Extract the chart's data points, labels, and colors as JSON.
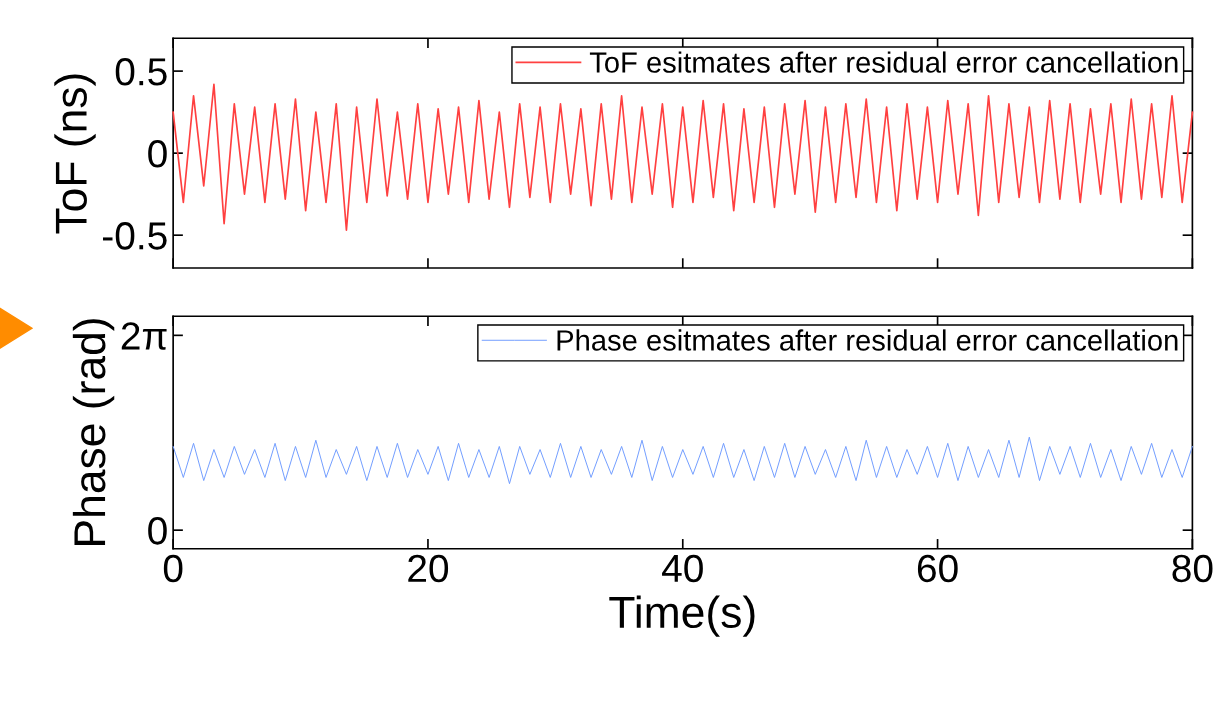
{
  "chart_data": [
    {
      "type": "line",
      "ylabel": "ToF (ns)",
      "tick_labels": "y",
      "legend": "top right",
      "xlim": [
        0,
        80
      ],
      "xticks": [
        0,
        20,
        40,
        60,
        80
      ],
      "ylim": [
        -0.7,
        0.7
      ],
      "yticks": [
        {
          "value": -0.5,
          "label": "-0.5"
        },
        0,
        0.5
      ],
      "x": [
        0,
        0.8,
        1.6,
        2.4,
        3.2,
        4,
        4.8,
        5.6,
        6.4,
        7.2,
        8,
        8.8,
        9.6,
        10.4,
        11.2,
        12,
        12.8,
        13.6,
        14.4,
        15.2,
        16,
        16.8,
        17.6,
        18.4,
        19.2,
        20,
        20.8,
        21.6,
        22.4,
        23.2,
        24,
        24.8,
        25.6,
        26.4,
        27.2,
        28,
        28.8,
        29.6,
        30.4,
        31.2,
        32,
        32.8,
        33.6,
        34.4,
        35.2,
        36,
        36.8,
        37.6,
        38.4,
        39.2,
        40,
        40.8,
        41.6,
        42.4,
        43.2,
        44,
        44.8,
        45.6,
        46.4,
        47.2,
        48,
        48.8,
        49.6,
        50.4,
        51.2,
        52,
        52.8,
        53.6,
        54.4,
        55.2,
        56,
        56.8,
        57.6,
        58.4,
        59.2,
        60,
        60.8,
        61.6,
        62.4,
        63.2,
        64,
        64.8,
        65.6,
        66.4,
        67.2,
        68,
        68.8,
        69.6,
        70.4,
        71.2,
        72,
        72.8,
        73.6,
        74.4,
        75.2,
        76,
        76.8,
        77.6,
        78.4,
        79.2,
        80
      ],
      "series": [
        {
          "name": "ToF esitmates after residual error cancellation",
          "color": "#ff4040",
          "values": [
            0.25,
            -0.3,
            0.35,
            -0.2,
            0.42,
            -0.43,
            0.3,
            -0.25,
            0.28,
            -0.3,
            0.3,
            -0.28,
            0.33,
            -0.35,
            0.25,
            -0.3,
            0.3,
            -0.47,
            0.28,
            -0.3,
            0.33,
            -0.26,
            0.25,
            -0.28,
            0.3,
            -0.3,
            0.27,
            -0.25,
            0.28,
            -0.3,
            0.32,
            -0.28,
            0.25,
            -0.33,
            0.3,
            -0.27,
            0.28,
            -0.3,
            0.3,
            -0.25,
            0.27,
            -0.32,
            0.3,
            -0.28,
            0.35,
            -0.3,
            0.28,
            -0.25,
            0.3,
            -0.33,
            0.28,
            -0.3,
            0.32,
            -0.27,
            0.3,
            -0.35,
            0.27,
            -0.3,
            0.28,
            -0.33,
            0.3,
            -0.25,
            0.32,
            -0.36,
            0.28,
            -0.3,
            0.3,
            -0.27,
            0.33,
            -0.3,
            0.28,
            -0.35,
            0.3,
            -0.28,
            0.28,
            -0.3,
            0.32,
            -0.25,
            0.3,
            -0.38,
            0.35,
            -0.3,
            0.3,
            -0.27,
            0.28,
            -0.3,
            0.32,
            -0.28,
            0.3,
            -0.3,
            0.27,
            -0.25,
            0.3,
            -0.3,
            0.33,
            -0.28,
            0.3,
            -0.27,
            0.35,
            -0.3,
            0.25
          ]
        }
      ]
    },
    {
      "type": "line",
      "ylabel": "Phase (rad)",
      "xlabel": "Time(s)",
      "legend": "top right",
      "xlim": [
        0,
        80
      ],
      "xticks": [
        0,
        20,
        40,
        60,
        80
      ],
      "ylim": [
        -0.6,
        6.9
      ],
      "yticks": [
        0,
        {
          "value": 6.283,
          "label": "2π"
        }
      ],
      "x": [
        0,
        0.8,
        1.6,
        2.4,
        3.2,
        4,
        4.8,
        5.6,
        6.4,
        7.2,
        8,
        8.8,
        9.6,
        10.4,
        11.2,
        12,
        12.8,
        13.6,
        14.4,
        15.2,
        16,
        16.8,
        17.6,
        18.4,
        19.2,
        20,
        20.8,
        21.6,
        22.4,
        23.2,
        24,
        24.8,
        25.6,
        26.4,
        27.2,
        28,
        28.8,
        29.6,
        30.4,
        31.2,
        32,
        32.8,
        33.6,
        34.4,
        35.2,
        36,
        36.8,
        37.6,
        38.4,
        39.2,
        40,
        40.8,
        41.6,
        42.4,
        43.2,
        44,
        44.8,
        45.6,
        46.4,
        47.2,
        48,
        48.8,
        49.6,
        50.4,
        51.2,
        52,
        52.8,
        53.6,
        54.4,
        55.2,
        56,
        56.8,
        57.6,
        58.4,
        59.2,
        60,
        60.8,
        61.6,
        62.4,
        63.2,
        64,
        64.8,
        65.6,
        66.4,
        67.2,
        68,
        68.8,
        69.6,
        70.4,
        71.2,
        72,
        72.8,
        73.6,
        74.4,
        75.2,
        76,
        76.8,
        77.6,
        78.4,
        79.2,
        80
      ],
      "series": [
        {
          "name": "Phase esitmates after residual error cancellation",
          "color": "#6e9bff",
          "values": [
            2.7,
            1.7,
            2.8,
            1.6,
            2.6,
            1.7,
            2.7,
            1.8,
            2.6,
            1.7,
            2.8,
            1.6,
            2.7,
            1.7,
            2.9,
            1.7,
            2.6,
            1.8,
            2.7,
            1.6,
            2.7,
            1.7,
            2.8,
            1.7,
            2.6,
            1.8,
            2.7,
            1.6,
            2.8,
            1.7,
            2.6,
            1.7,
            2.7,
            1.5,
            2.7,
            1.8,
            2.6,
            1.7,
            2.8,
            1.7,
            2.7,
            1.7,
            2.6,
            1.8,
            2.7,
            1.7,
            2.9,
            1.6,
            2.7,
            1.7,
            2.6,
            1.8,
            2.7,
            1.7,
            2.8,
            1.7,
            2.6,
            1.6,
            2.7,
            1.7,
            2.8,
            1.7,
            2.7,
            1.8,
            2.6,
            1.7,
            2.7,
            1.6,
            2.9,
            1.7,
            2.7,
            1.7,
            2.6,
            1.8,
            2.7,
            1.7,
            2.8,
            1.6,
            2.7,
            1.7,
            2.6,
            1.7,
            2.9,
            1.7,
            3.0,
            1.6,
            2.7,
            1.8,
            2.7,
            1.7,
            2.8,
            1.7,
            2.6,
            1.6,
            2.7,
            1.8,
            2.8,
            1.7,
            2.6,
            1.7,
            2.7
          ]
        }
      ]
    }
  ]
}
